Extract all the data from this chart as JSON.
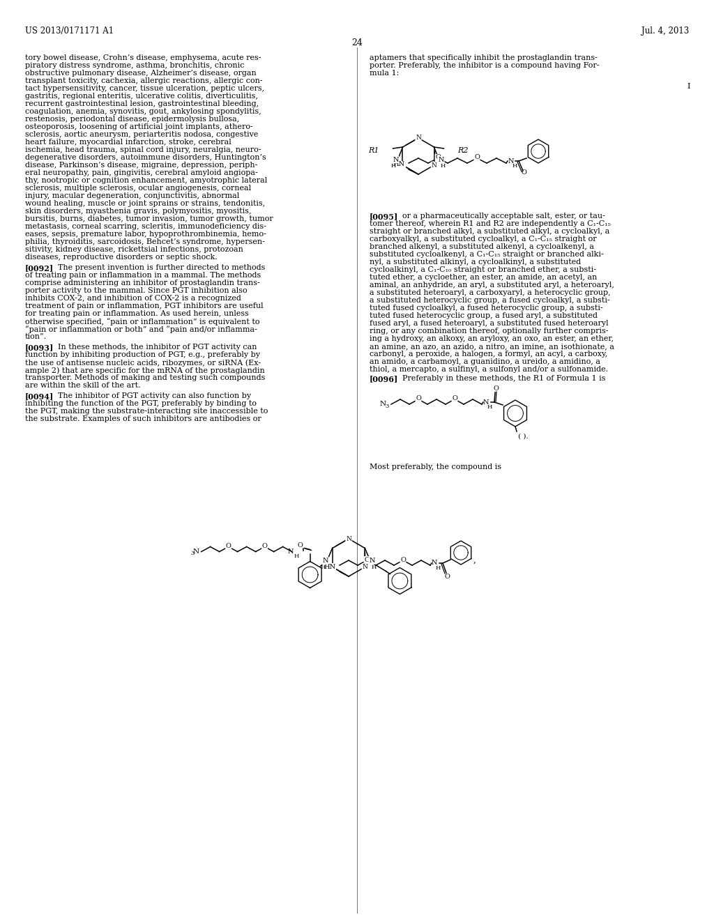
{
  "background_color": "#ffffff",
  "header_left": "US 2013/0171171 A1",
  "header_right": "Jul. 4, 2013",
  "page_number": "24",
  "left_col_text": [
    "tory bowel disease, Crohn’s disease, emphysema, acute res-",
    "piratory distress syndrome, asthma, bronchitis, chronic",
    "obstructive pulmonary disease, Alzheimer’s disease, organ",
    "transplant toxicity, cachexia, allergic reactions, allergic con-",
    "tact hypersensitivity, cancer, tissue ulceration, peptic ulcers,",
    "gastritis, regional enteritis, ulcerative colitis, diverticulitis,",
    "recurrent gastrointestinal lesion, gastrointestinal bleeding,",
    "coagulation, anemia, synovitis, gout, ankylosing spondylitis,",
    "restenosis, periodontal disease, epidermolysis bullosa,",
    "osteoporosis, loosening of artificial joint implants, athero-",
    "sclerosis, aortic aneurysm, periarteritis nodosa, congestive",
    "heart failure, myocardial infarction, stroke, cerebral",
    "ischemia, head trauma, spinal cord injury, neuralgia, neuro-",
    "degenerative disorders, autoimmune disorders, Huntington’s",
    "disease, Parkinson’s disease, migraine, depression, periph-",
    "eral neuropathy, pain, gingivitis, cerebral amyloid angiopa-",
    "thy, nootropic or cognition enhancement, amyotrophic lateral",
    "sclerosis, multiple sclerosis, ocular angiogenesis, corneal",
    "injury, macular degeneration, conjunctivitis, abnormal",
    "wound healing, muscle or joint sprains or strains, tendonitis,",
    "skin disorders, myasthenia gravis, polymyositis, myositis,",
    "bursitis, burns, diabetes, tumor invasion, tumor growth, tumor",
    "metastasis, corneal scarring, scleritis, immunodeficiency dis-",
    "eases, sepsis, premature labor, hypoprothrombinemia, hemo-",
    "philia, thyroiditis, sarcoidosis, Behcet’s syndrome, hypersen-",
    "sitivity, kidney disease, rickettsial infections, protozoan",
    "diseases, reproductive disorders or septic shock."
  ],
  "para0092": [
    "[0092]   The present invention is further directed to methods",
    "of treating pain or inflammation in a mammal. The methods",
    "comprise administering an inhibitor of prostaglandin trans-",
    "porter activity to the mammal. Since PGT inhibition also",
    "inhibits COX-2, and inhibition of COX-2 is a recognized",
    "treatment of pain or inflammation, PGT inhibitors are useful",
    "for treating pain or inflammation. As used herein, unless",
    "otherwise specified, “pain or inflammation” is equivalent to",
    "“pain or inflammation or both” and “pain and/or inflamma-",
    "tion”."
  ],
  "para0093": [
    "[0093]   In these methods, the inhibitor of PGT activity can",
    "function by inhibiting production of PGT, e.g., preferably by",
    "the use of antisense nucleic acids, ribozymes, or siRNA (Ex-",
    "ample 2) that are specific for the mRNA of the prostaglandin",
    "transporter. Methods of making and testing such compounds",
    "are within the skill of the art."
  ],
  "para0094": [
    "[0094]   The inhibitor of PGT activity can also function by",
    "inhibiting the function of the PGT, preferably by binding to",
    "the PGT, making the substrate-interacting site inaccessible to",
    "the substrate. Examples of such inhibitors are antibodies or"
  ],
  "right_col_text1": [
    "aptamers that specifically inhibit the prostaglandin trans-",
    "porter. Preferably, the inhibitor is a compound having For-",
    "mula 1:"
  ],
  "para0095": [
    "[0095]   or a pharmaceutically acceptable salt, ester, or tau-",
    "tomer thereof, wherein R1 and R2 are independently a C₁-C₁₅",
    "straight or branched alkyl, a substituted alkyl, a cycloalkyl, a",
    "carboxyalkyl, a substituted cycloalkyl, a C₁-C₁₅ straight or",
    "branched alkenyl, a substituted alkenyl, a cycloalkenyl, a",
    "substituted cycloalkenyl, a C₁-C₁₅ straight or branched alki-",
    "nyl, a substituted alkinyl, a cycloalkinyl, a substituted",
    "cycloalkinyl, a C₁-C₁₀ straight or branched ether, a substi-",
    "tuted ether, a cycloether, an ester, an amide, an acetyl, an",
    "aminal, an anhydride, an aryl, a substituted aryl, a heteroaryl,",
    "a substituted heteroaryl, a carboxyaryl, a heterocyclic group,",
    "a substituted heterocyclic group, a fused cycloalkyl, a substi-",
    "tuted fused cycloalkyl, a fused heterocyclic group, a substi-",
    "tuted fused heterocyclic group, a fused aryl, a substituted",
    "fused aryl, a fused heteroaryl, a substituted fused heteroaryl",
    "ring, or any combination thereof, optionally further compris-",
    "ing a hydroxy, an alkoxy, an aryloxy, an oxo, an ester, an ether,",
    "an amine, an azo, an azido, a nitro, an imine, an isothionate, a",
    "carbonyl, a peroxide, a halogen, a formyl, an acyl, a carboxy,",
    "an amido, a carbamoyl, a guanidino, a ureido, a amidino, a",
    "thiol, a mercapto, a sulfinyl, a sulfonyl and/or a sulfonamide."
  ],
  "para0096_line": "[0096]   Preferably in these methods, the R1 of Formula 1 is",
  "most_preferably": "Most preferably, the compound is"
}
